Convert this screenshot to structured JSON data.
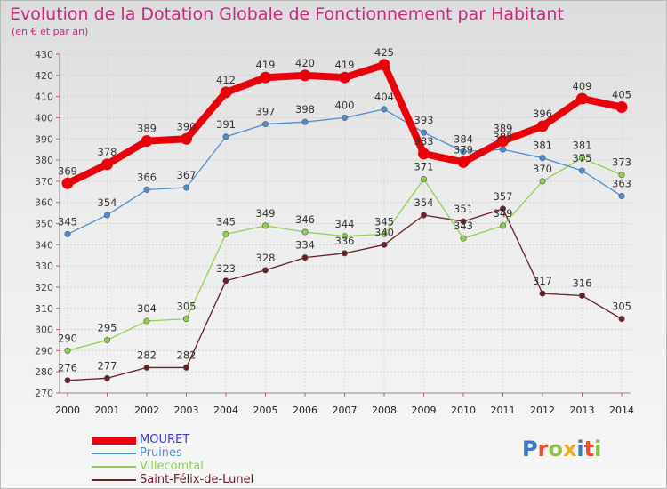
{
  "title": "Evolution de la Dotation Globale de Fonctionnement par Habitant",
  "subtitle": "(en € et par an)",
  "logo": {
    "text": "Proxiti",
    "colors": [
      "#3a78c9",
      "#e94f2e",
      "#8bc34a",
      "#f5a623",
      "#3a78c9",
      "#e94f2e",
      "#8bc34a"
    ]
  },
  "colors": {
    "title": "#c8297f",
    "axis": "#444444"
  },
  "chart_data": {
    "type": "line",
    "x": [
      "2000",
      "2001",
      "2002",
      "2003",
      "2004",
      "2005",
      "2006",
      "2007",
      "2008",
      "2009",
      "2010",
      "2011",
      "2012",
      "2013",
      "2014"
    ],
    "ylim": [
      270,
      430
    ],
    "yticks": [
      270,
      280,
      290,
      300,
      310,
      320,
      330,
      340,
      350,
      360,
      370,
      380,
      390,
      400,
      410,
      420,
      430
    ],
    "grid": true,
    "legend_position": "bottom-left",
    "series": [
      {
        "name": "MOURET",
        "color": "#e8000b",
        "values": [
          369,
          378,
          389,
          390,
          412,
          419,
          420,
          419,
          425,
          383,
          379,
          389,
          396,
          409,
          405
        ]
      },
      {
        "name": "Pruines",
        "color": "#4f8ed0",
        "values": [
          345,
          354,
          366,
          367,
          391,
          397,
          398,
          400,
          404,
          393,
          384,
          385,
          381,
          375,
          363
        ]
      },
      {
        "name": "Villecomtal",
        "color": "#8fd14f",
        "values": [
          290,
          295,
          304,
          305,
          345,
          349,
          346,
          344,
          345,
          371,
          343,
          349,
          370,
          381,
          373
        ]
      },
      {
        "name": "Saint-Félix-de-Lunel",
        "color": "#6b1e25",
        "values": [
          276,
          277,
          282,
          282,
          323,
          328,
          334,
          336,
          340,
          354,
          351,
          357,
          317,
          316,
          305
        ]
      }
    ]
  }
}
